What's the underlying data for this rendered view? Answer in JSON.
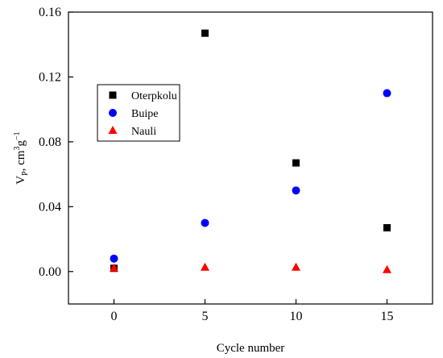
{
  "chart_data": {
    "type": "scatter",
    "xlabel": "Cycle number",
    "ylabel": {
      "main": "V",
      "sub": "P",
      "rest": ", cm",
      "sup1": "3",
      "mid": "g",
      "sup2": "−1"
    },
    "xlim": [
      -2.5,
      17.5
    ],
    "ylim": [
      -0.02,
      0.16
    ],
    "xticks": [
      0,
      5,
      10,
      15
    ],
    "xtick_labels": [
      "0",
      "5",
      "10",
      "15"
    ],
    "yticks": [
      0.0,
      0.04,
      0.08,
      0.12,
      0.16
    ],
    "ytick_labels": [
      "0.00",
      "0.04",
      "0.08",
      "0.12",
      "0.16"
    ],
    "grid": false,
    "legend_position": "upper-left",
    "series": [
      {
        "name": "Oterpkolu",
        "marker": "square",
        "color": "#000000",
        "x": [
          0,
          5,
          10,
          15
        ],
        "y": [
          0.002,
          0.147,
          0.067,
          0.027
        ]
      },
      {
        "name": "Buipe",
        "marker": "circle",
        "color": "#0000ff",
        "x": [
          0,
          5,
          10,
          15
        ],
        "y": [
          0.008,
          0.03,
          0.05,
          0.11
        ]
      },
      {
        "name": "Nauli",
        "marker": "triangle",
        "color": "#ff0000",
        "x": [
          0,
          5,
          10,
          15
        ],
        "y": [
          0.002,
          0.0025,
          0.0025,
          0.001
        ]
      }
    ]
  }
}
